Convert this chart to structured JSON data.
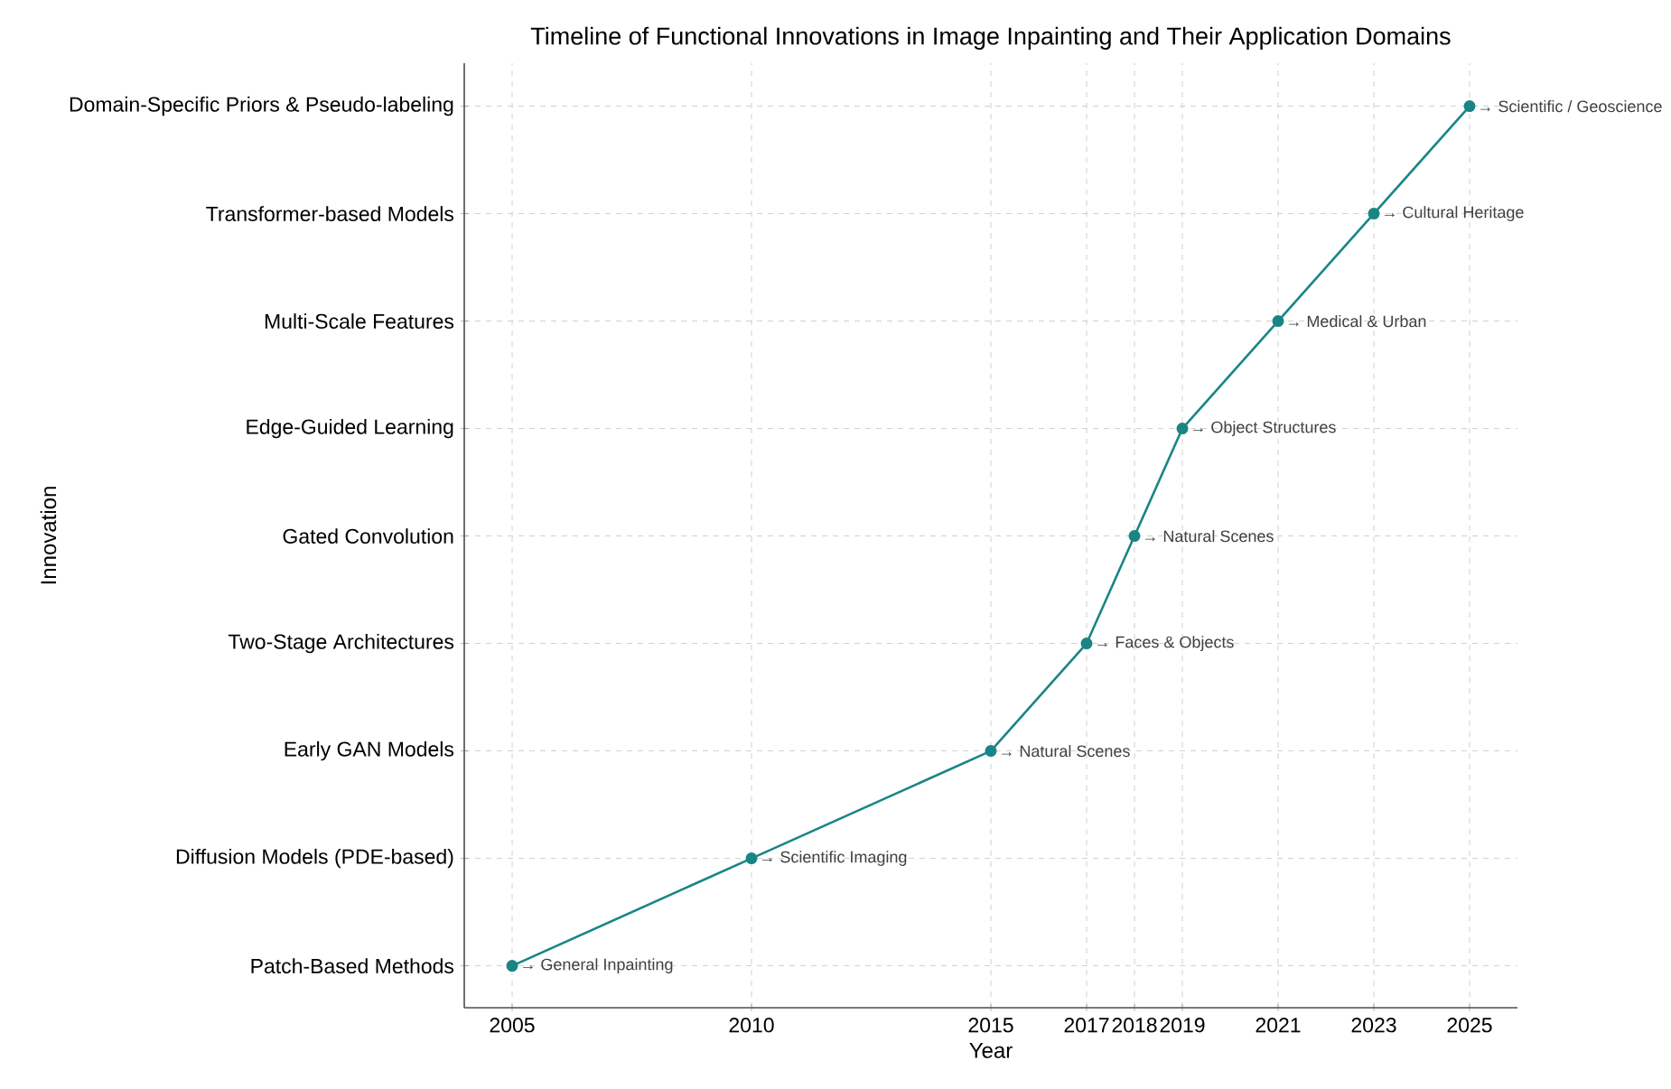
{
  "chart_data": {
    "type": "line",
    "orientation": "horizontal",
    "title": "Timeline of Functional Innovations in Image Inpainting and Their Application Domains",
    "xlabel": "Year",
    "ylabel": "Innovation",
    "categories": [
      "Domain-Specific Priors & Pseudo-labeling",
      "Transformer-based Models",
      "Multi-Scale Features",
      "Edge-Guided Learning",
      "Gated Convolution",
      "Two-Stage Architectures",
      "Early GAN Models",
      "Diffusion Models (PDE-based)",
      "Patch-Based Methods"
    ],
    "values": [
      2025,
      2023,
      2021,
      2019,
      2018,
      2017,
      2015,
      2010,
      2005
    ],
    "color": "#1a8585",
    "marker": "circle",
    "line_style": "solid",
    "grid": true,
    "xlim": [
      2004,
      2026
    ],
    "xticks": [
      2005,
      2010,
      2015,
      2017,
      2018,
      2019,
      2021,
      2023,
      2025
    ],
    "annotations": [
      {
        "text": "→ Scientific / Geoscience",
        "x": 2025,
        "y": "Domain-Specific Priors & Pseudo-labeling"
      },
      {
        "text": "→ Cultural Heritage",
        "x": 2023,
        "y": "Transformer-based Models"
      },
      {
        "text": "→ Medical & Urban",
        "x": 2021,
        "y": "Multi-Scale Features"
      },
      {
        "text": "→ Object Structures",
        "x": 2019,
        "y": "Edge-Guided Learning"
      },
      {
        "text": "→ Natural Scenes",
        "x": 2018,
        "y": "Gated Convolution"
      },
      {
        "text": "→ Faces & Objects",
        "x": 2017,
        "y": "Two-Stage Architectures"
      },
      {
        "text": "→ Natural Scenes",
        "x": 2015,
        "y": "Early GAN Models"
      },
      {
        "text": "→ Scientific Imaging",
        "x": 2010,
        "y": "Diffusion Models (PDE-based)"
      },
      {
        "text": "→ General Inpainting",
        "x": 2005,
        "y": "Patch-Based Methods"
      }
    ]
  }
}
